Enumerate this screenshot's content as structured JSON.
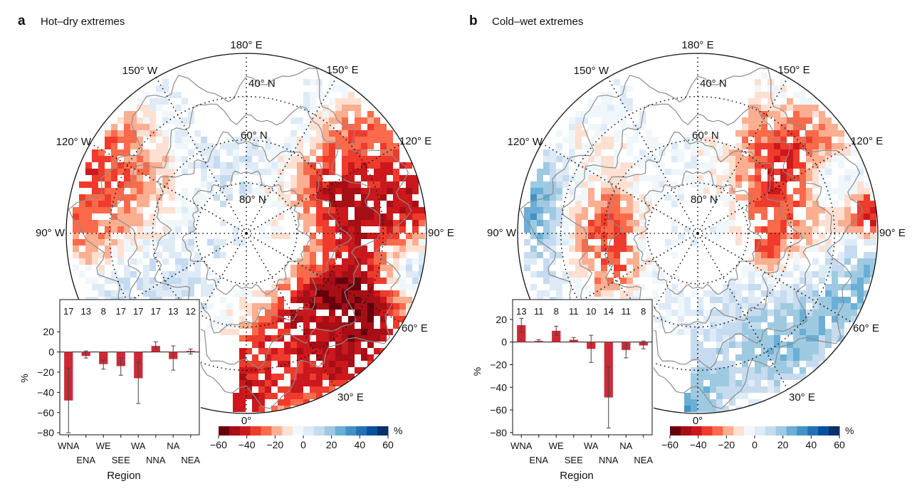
{
  "panels": [
    {
      "letter": "a",
      "title": "Hot–dry extremes",
      "map": {
        "lon_labels": [
          "180° E",
          "150° E",
          "120° E",
          "90° E",
          "60° E",
          "30° E",
          "0°",
          "90° W",
          "120° W",
          "150° W"
        ],
        "lat_labels": [
          "40° N",
          "60° N",
          "80° N"
        ]
      },
      "chart_data": {
        "type": "bar",
        "categories": [
          "WNA",
          "ENA",
          "WE",
          "SEE",
          "WA",
          "NNA",
          "NA",
          "NEA"
        ],
        "values": [
          -48,
          -4,
          -12,
          -14,
          -26,
          6,
          -7,
          1
        ],
        "error_low": [
          -80,
          -6,
          -17,
          -23,
          -51,
          3,
          -18,
          -2
        ],
        "error_high": [
          -16,
          1,
          -8,
          -6,
          -10,
          10,
          6,
          3
        ],
        "counts": [
          "17",
          "13",
          "8",
          "17",
          "17",
          "17",
          "13",
          "12"
        ],
        "xlabel": "Region",
        "ylabel": "%",
        "ylim": [
          -82,
          30
        ],
        "yticks": [
          20,
          0,
          -20,
          -40,
          -60,
          -80
        ]
      }
    },
    {
      "letter": "b",
      "title": "Cold–wet extremes",
      "map": {
        "lon_labels": [
          "180° E",
          "150° E",
          "120° E",
          "90° E",
          "60° E",
          "30° E",
          "0°",
          "90° W",
          "120° W",
          "150° W"
        ],
        "lat_labels": [
          "40° N",
          "60° N",
          "80° N"
        ]
      },
      "chart_data": {
        "type": "bar",
        "categories": [
          "WNA",
          "ENA",
          "WE",
          "SEE",
          "WA",
          "NNA",
          "NA",
          "NEA"
        ],
        "values": [
          15,
          1,
          10,
          2,
          -6,
          -49,
          -7,
          -3
        ],
        "error_low": [
          9,
          0,
          6,
          0,
          -18,
          -76,
          -14,
          -6
        ],
        "error_high": [
          21,
          2,
          14,
          4,
          6,
          -22,
          0,
          1
        ],
        "counts": [
          "13",
          "11",
          "8",
          "11",
          "10",
          "14",
          "11",
          "8"
        ],
        "xlabel": "Region",
        "ylabel": "%",
        "ylim": [
          -82,
          30
        ],
        "yticks": [
          20,
          0,
          -20,
          -40,
          -60,
          -80
        ]
      }
    }
  ],
  "colorbar": {
    "unit": "%",
    "tick_labels": [
      "−60",
      "−40",
      "−20",
      "0",
      "20",
      "40",
      "60"
    ],
    "colors": [
      "#67000d",
      "#a50f15",
      "#cb181d",
      "#ef3b2c",
      "#fb6a4a",
      "#fcae91",
      "#fee0d2",
      "#f0f7fb",
      "#deebf7",
      "#c6dbef",
      "#9ecae1",
      "#6baed6",
      "#4292c6",
      "#2171b5",
      "#08519c",
      "#08306b"
    ]
  },
  "colors": {
    "bar": "#cc2936",
    "coast": "#8c8c8c",
    "grid": "#111111"
  }
}
